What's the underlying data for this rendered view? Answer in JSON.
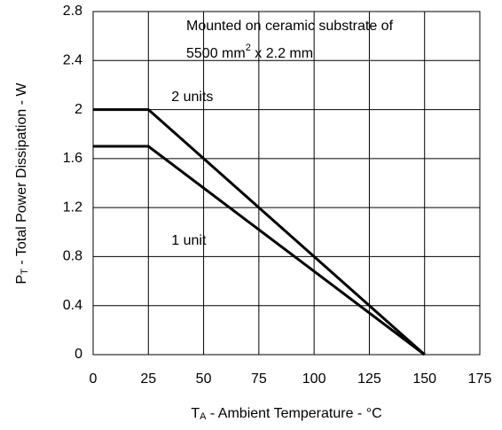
{
  "chart_data": {
    "type": "line",
    "annotation": [
      "Mounted on ceramic substrate of",
      {
        "main": "5500 mm",
        "sup": "2",
        "rest": " x 2.2 mm"
      }
    ],
    "xlabel": {
      "main": "T",
      "sub": "A",
      "rest": " - Ambient Temperature - °C"
    },
    "ylabel": {
      "main": "P",
      "sub": "T",
      "rest": " - Total Power Dissipation - W"
    },
    "x": [
      0,
      25,
      150
    ],
    "series": [
      {
        "name": "2 units",
        "color": "#000000",
        "values": [
          2,
          2,
          0
        ]
      },
      {
        "name": "1 unit",
        "color": "#000000",
        "values": [
          1.7,
          1.7,
          0
        ]
      }
    ],
    "xlim": [
      0,
      175
    ],
    "xticks": [
      0,
      25,
      50,
      75,
      100,
      125,
      150,
      175
    ],
    "ylim": [
      0,
      2.8
    ],
    "yticks": [
      0,
      0.4,
      0.8,
      1.2,
      1.6,
      2,
      2.4,
      2.8
    ],
    "grid": true
  }
}
